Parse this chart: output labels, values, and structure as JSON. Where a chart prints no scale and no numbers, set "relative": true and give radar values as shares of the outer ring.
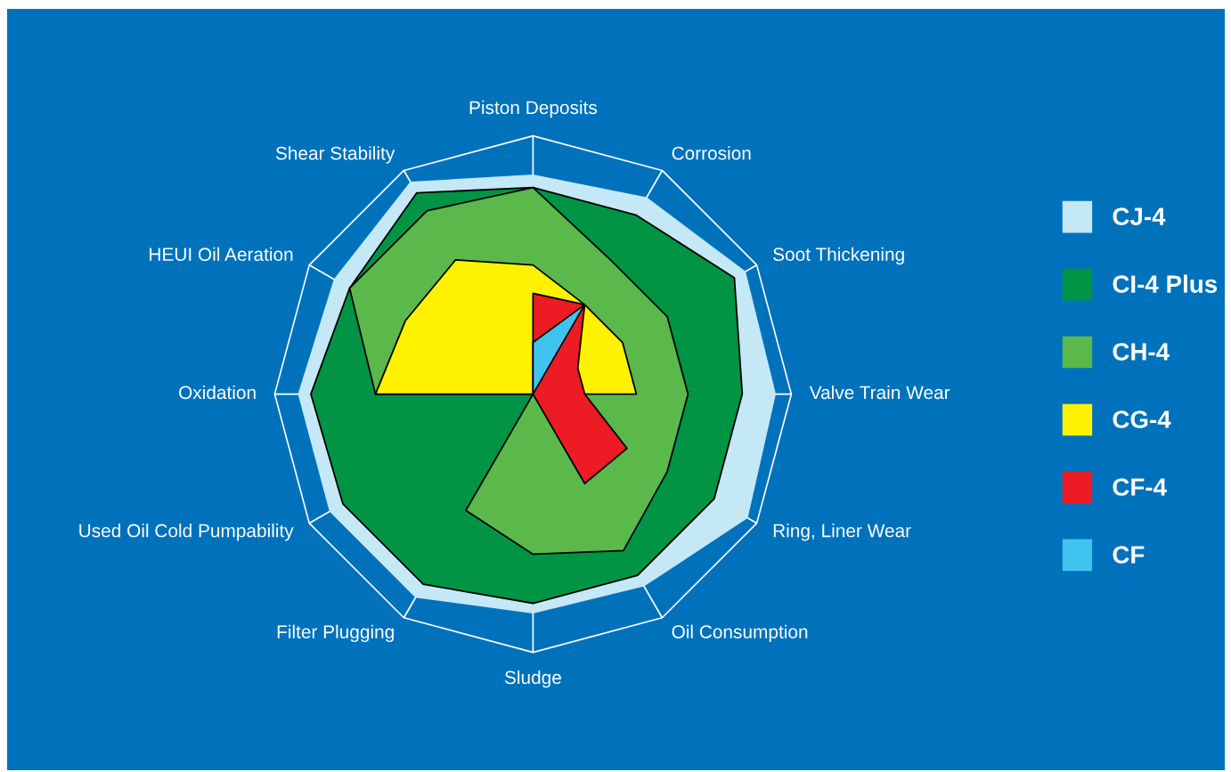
{
  "chart_data": {
    "type": "radar",
    "relative": true,
    "grid": true,
    "legend": "right",
    "categories": [
      "Piston Deposits",
      "Corrosion",
      "Soot Thickening",
      "Valve Train Wear",
      "Ring, Liner Wear",
      "Oil Consumption",
      "Sludge",
      "Filter Plugging",
      "Used Oil Cold Pumpability",
      "Oxidation",
      "HEUI Oil Aeration",
      "Shear Stability"
    ],
    "series": [
      {
        "name": "CJ-4",
        "color": "#c5e8f7",
        "values": [
          0.85,
          0.88,
          0.95,
          0.94,
          0.96,
          0.86,
          0.85,
          0.91,
          0.91,
          0.91,
          0.89,
          0.95
        ]
      },
      {
        "name": "CI-4 Plus",
        "color": "#009444",
        "values": [
          0.8,
          0.8,
          0.9,
          0.81,
          0.81,
          0.81,
          0.81,
          0.85,
          0.85,
          0.86,
          0.82,
          0.9
        ]
      },
      {
        "name": "CH-4",
        "color": "#5ab94a",
        "values": [
          0.8,
          0.6,
          0.6,
          0.6,
          0.6,
          0.7,
          0.62,
          0.52,
          0,
          0.61,
          0.82,
          0.82
        ]
      },
      {
        "name": "CG-4",
        "color": "#fff200",
        "values": [
          0.5,
          0.4,
          0.4,
          0.4,
          0,
          0,
          0,
          0,
          0,
          0.61,
          0.57,
          0.6
        ]
      },
      {
        "name": "CF-4",
        "color": "#ed1c24",
        "values": [
          0.39,
          0.4,
          0.2,
          0.2,
          0.42,
          0.4,
          0,
          0,
          0,
          0,
          0,
          0
        ]
      },
      {
        "name": "CF",
        "color": "#3fc4f0",
        "values": [
          0.2,
          0.4,
          0,
          0,
          0,
          0,
          0,
          0,
          0,
          0,
          0,
          0
        ]
      }
    ]
  }
}
